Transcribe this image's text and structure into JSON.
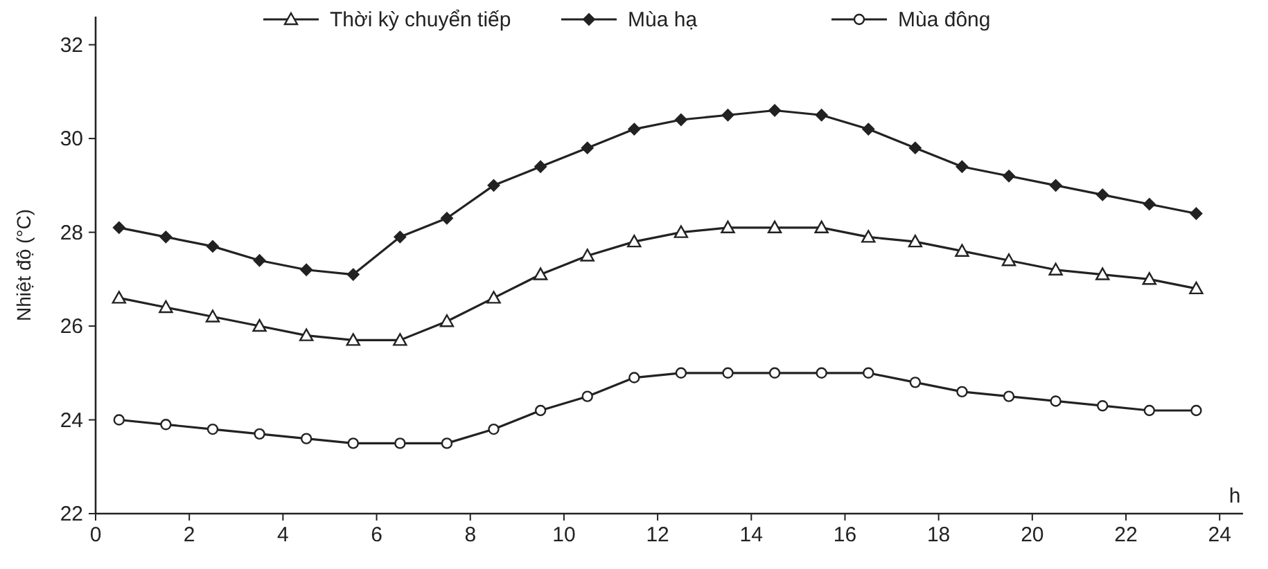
{
  "chart_data": {
    "type": "line",
    "xlabel": "h",
    "ylabel": "Nhiệt độ (°C)",
    "x": [
      0.5,
      1.5,
      2.5,
      3.5,
      4.5,
      5.5,
      6.5,
      7.5,
      8.5,
      9.5,
      10.5,
      11.5,
      12.5,
      13.5,
      14.5,
      15.5,
      16.5,
      17.5,
      18.5,
      19.5,
      20.5,
      21.5,
      22.5,
      23.5
    ],
    "series": [
      {
        "name": "Thời kỳ chuyển tiếp",
        "color": "#222222",
        "marker": "triangle",
        "values": [
          26.6,
          26.4,
          26.2,
          26.0,
          25.8,
          25.7,
          25.7,
          26.1,
          26.6,
          27.1,
          27.5,
          27.8,
          28.0,
          28.1,
          28.1,
          28.1,
          27.9,
          27.8,
          27.6,
          27.4,
          27.2,
          27.1,
          27.0,
          26.8
        ]
      },
      {
        "name": "Mùa hạ",
        "color": "#222222",
        "marker": "diamond",
        "values": [
          28.1,
          27.9,
          27.7,
          27.4,
          27.2,
          27.1,
          27.9,
          28.3,
          29.0,
          29.4,
          29.8,
          30.2,
          30.4,
          30.5,
          30.6,
          30.5,
          30.2,
          29.8,
          29.4,
          29.2,
          29.0,
          28.8,
          28.6,
          28.4
        ]
      },
      {
        "name": "Mùa đông",
        "color": "#222222",
        "marker": "circle",
        "values": [
          24.0,
          23.9,
          23.8,
          23.7,
          23.6,
          23.5,
          23.5,
          23.5,
          23.8,
          24.2,
          24.5,
          24.9,
          25.0,
          25.0,
          25.0,
          25.0,
          25.0,
          24.8,
          24.6,
          24.5,
          24.4,
          24.3,
          24.2,
          24.2
        ]
      }
    ],
    "xlim": [
      0,
      24.5
    ],
    "xticks": [
      0,
      2,
      4,
      6,
      8,
      10,
      12,
      14,
      16,
      18,
      20,
      22,
      24
    ],
    "ylim": [
      22,
      32.6
    ],
    "yticks": [
      22,
      24,
      26,
      28,
      30,
      32
    ],
    "grid": false,
    "legend": "top",
    "line_style": "solid"
  }
}
